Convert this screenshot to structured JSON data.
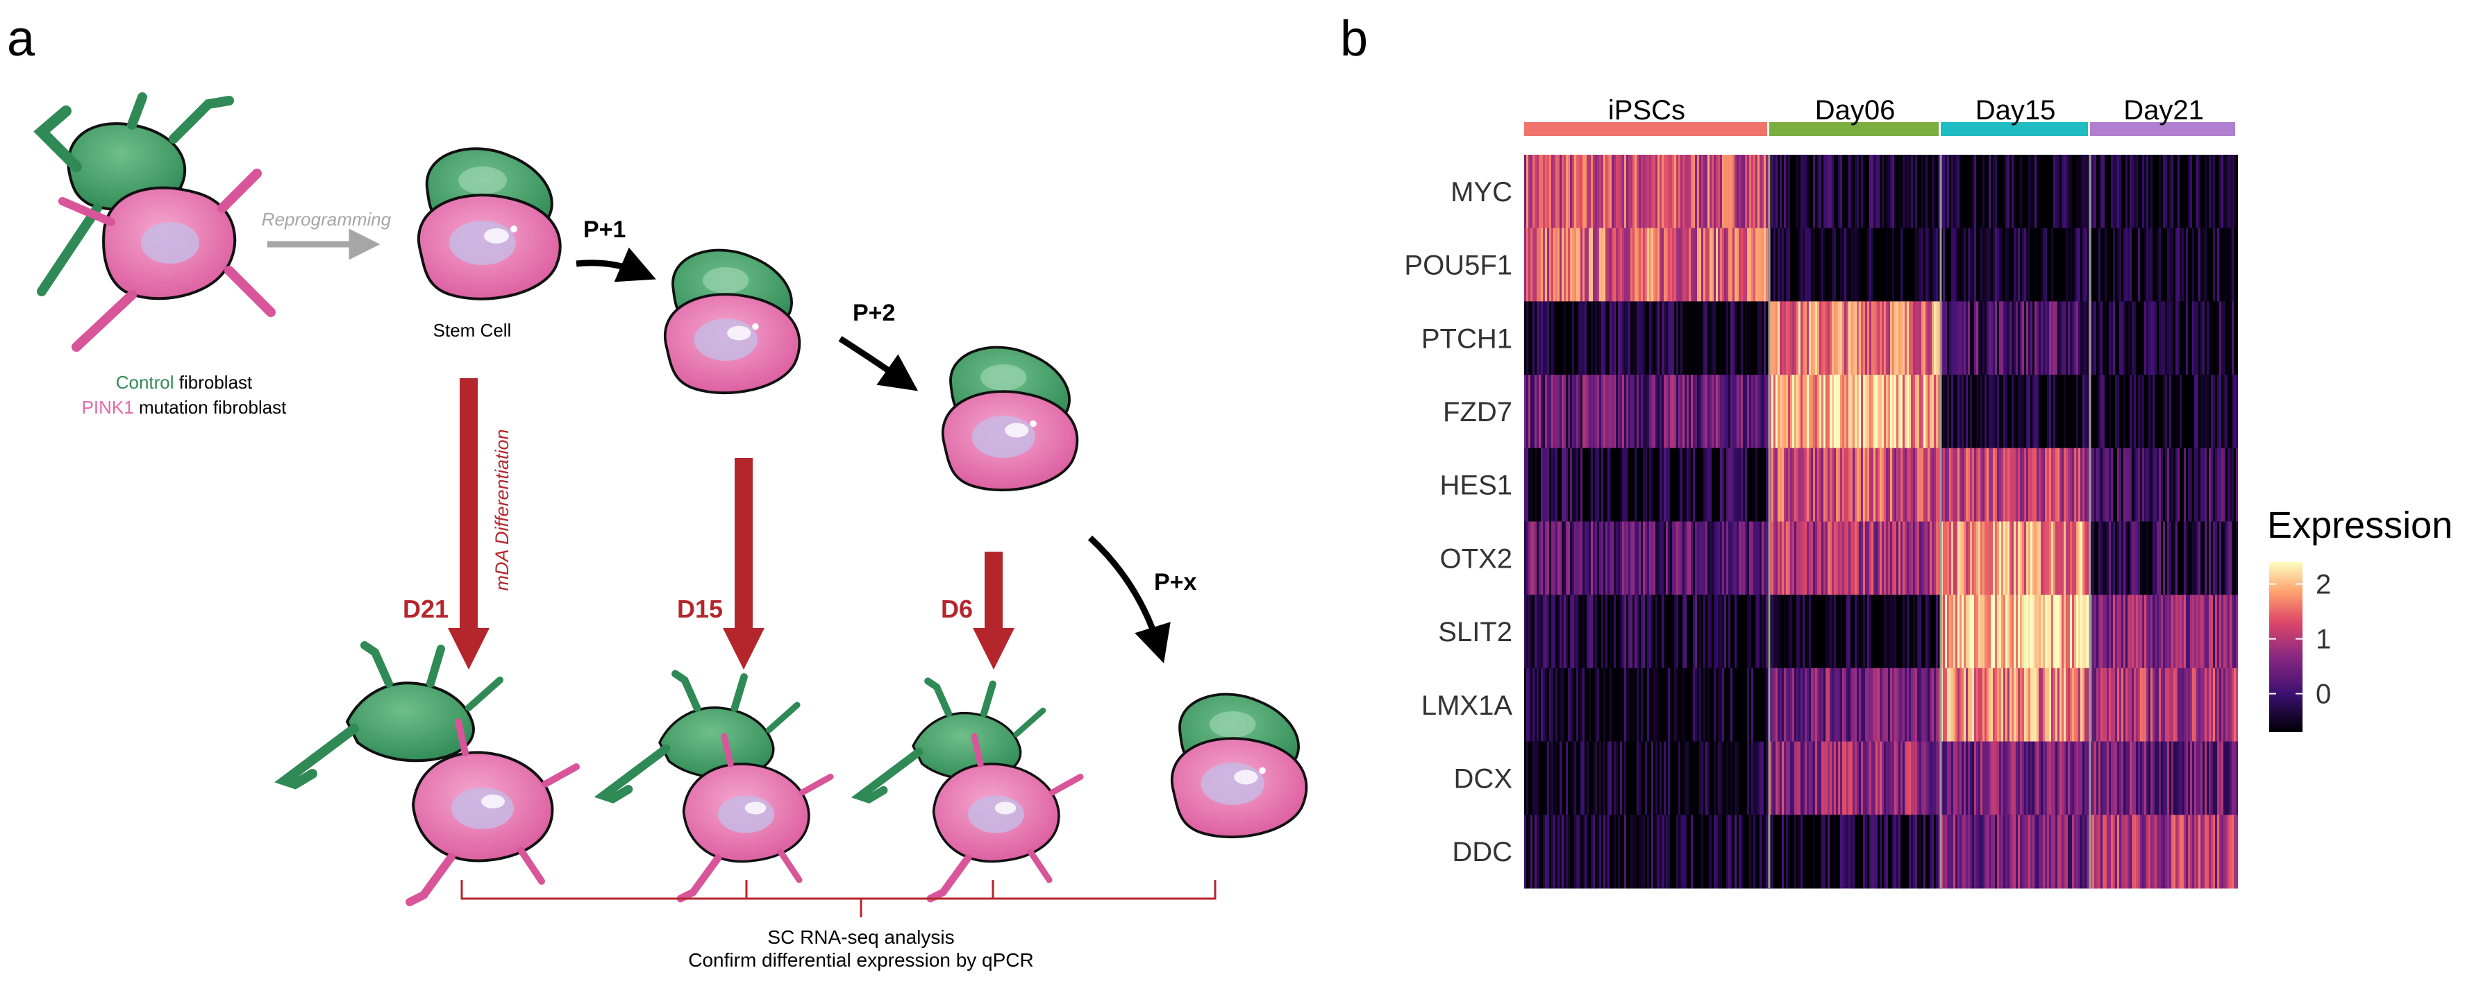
{
  "panel_a": {
    "label": "a",
    "reprogramming": "Reprogramming",
    "legend_control_word": "Control",
    "legend_control_rest": " fibroblast",
    "legend_pink1_word": "PINK1",
    "legend_pink1_rest": " mutation fibroblast",
    "stem_cell": "Stem Cell",
    "passages": [
      "P+1",
      "P+2",
      "P+x"
    ],
    "differentiation": "mDA Differentiation",
    "days": [
      "D21",
      "D15",
      "D6"
    ],
    "analysis_line1": "SC RNA-seq analysis",
    "analysis_line2": "Confirm differential expression by qPCR"
  },
  "panel_b": {
    "label": "b",
    "groups": [
      {
        "name": "iPSCs",
        "color": "#f0736c"
      },
      {
        "name": "Day06",
        "color": "#7cad3f"
      },
      {
        "name": "Day15",
        "color": "#1fbcc3"
      },
      {
        "name": "Day21",
        "color": "#b07fd0"
      }
    ],
    "genes": [
      "MYC",
      "POU5F1",
      "PTCH1",
      "FZD7",
      "HES1",
      "OTX2",
      "SLIT2",
      "LMX1A",
      "DCX",
      "DDC"
    ],
    "legend_title": "Expression",
    "legend_ticks": [
      "2",
      "1",
      "0"
    ],
    "legend_tick_values": [
      2,
      1,
      0
    ],
    "legend_range": [
      -0.7,
      2.4
    ],
    "levels": [
      [
        1.2,
        -0.5,
        -0.6,
        -0.6
      ],
      [
        1.4,
        -0.6,
        -0.6,
        -0.6
      ],
      [
        -0.5,
        1.6,
        0.1,
        -0.5
      ],
      [
        0.3,
        1.9,
        -0.6,
        -0.6
      ],
      [
        -0.4,
        1.2,
        1.0,
        -0.2
      ],
      [
        0.2,
        0.9,
        1.7,
        -0.2
      ],
      [
        -0.4,
        -0.6,
        2.0,
        0.6
      ],
      [
        -0.6,
        0.5,
        1.6,
        0.9
      ],
      [
        -0.6,
        0.7,
        0.5,
        0.4
      ],
      [
        -0.5,
        -0.5,
        0.5,
        0.9
      ]
    ]
  }
}
